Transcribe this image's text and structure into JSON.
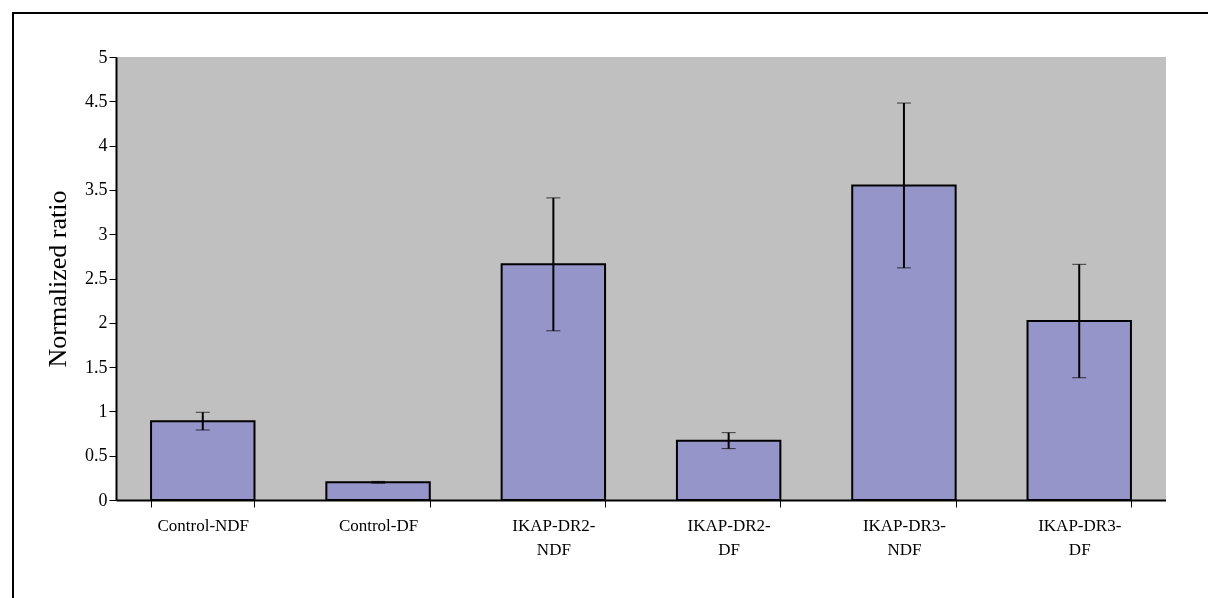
{
  "chart_data": {
    "type": "bar",
    "ylabel": "Normalized ratio",
    "categories": [
      "Control-NDF",
      "Control-DF",
      "IKAP-DR2-NDF",
      "IKAP-DR2-DF",
      "IKAP-DR3-NDF",
      "IKAP-DR3-DF"
    ],
    "values": [
      0.89,
      0.2,
      2.66,
      0.67,
      3.55,
      2.02
    ],
    "errors": [
      0.1,
      0.01,
      0.75,
      0.09,
      0.93,
      0.64
    ],
    "color": "#9595c9",
    "ylim": [
      0,
      5
    ],
    "yticks": [
      0,
      0.5,
      1,
      1.5,
      2,
      2.5,
      3,
      3.5,
      4,
      4.5,
      5
    ],
    "grid": false
  }
}
